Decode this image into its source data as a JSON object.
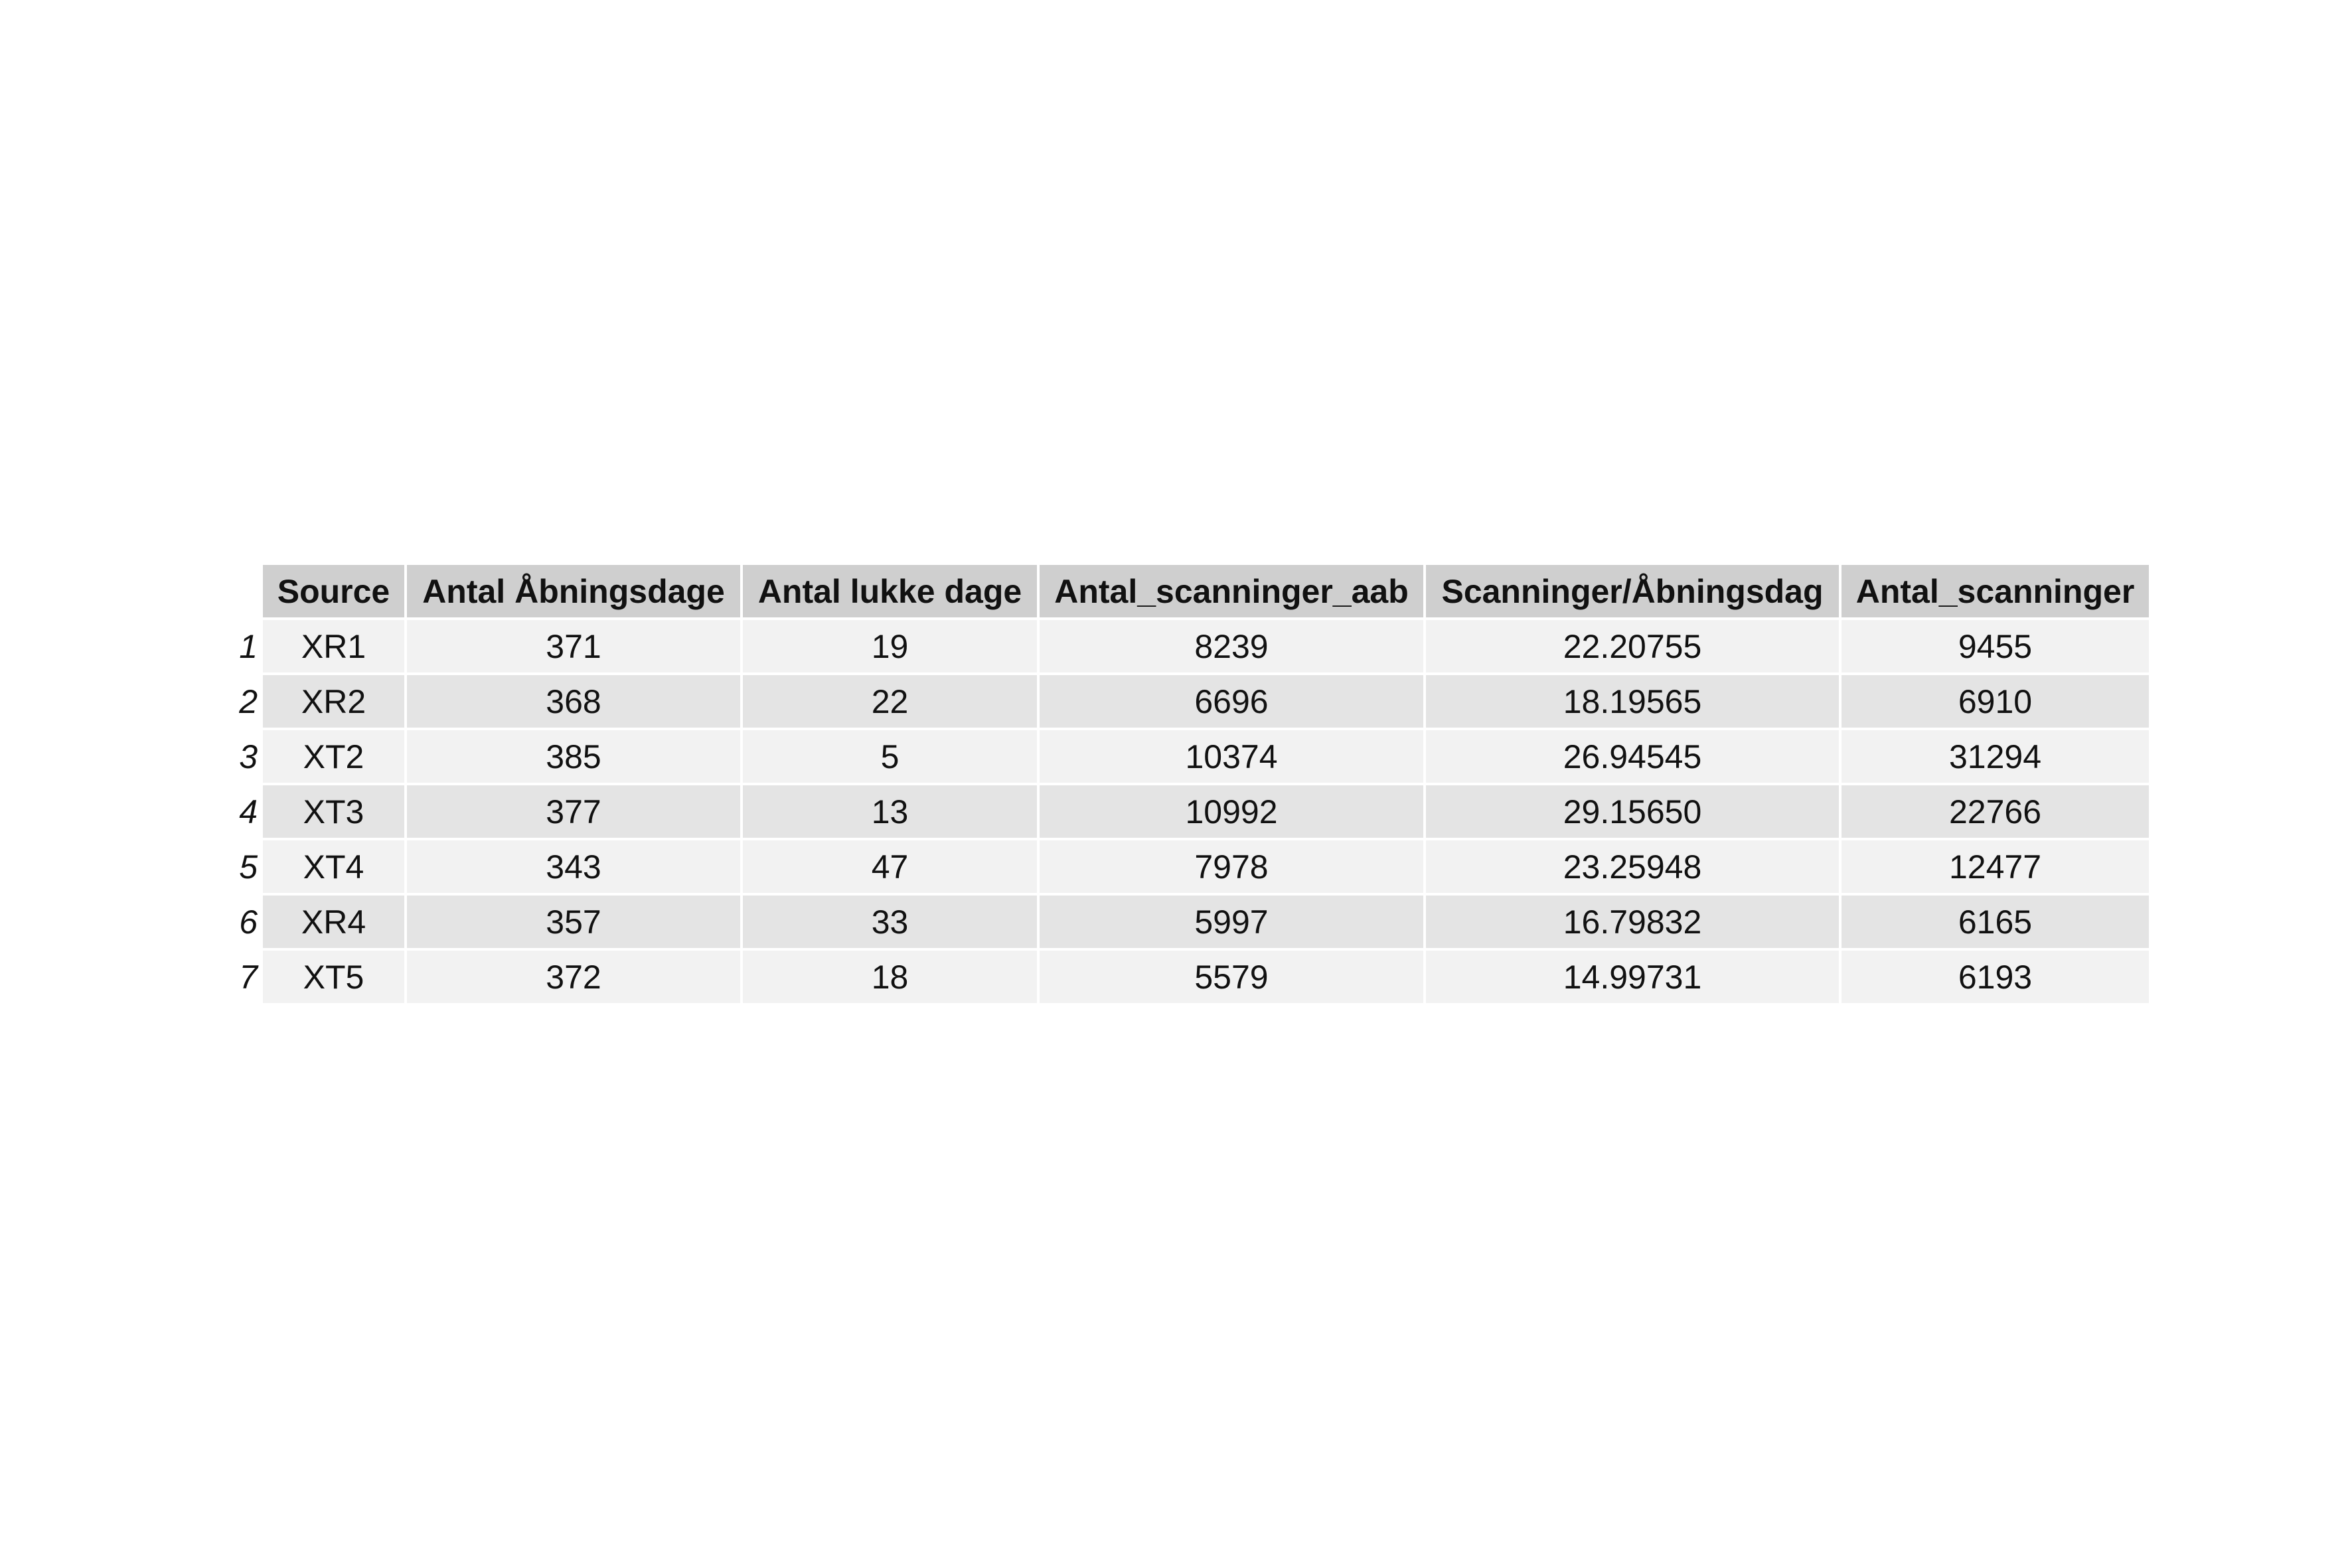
{
  "chart_data": {
    "type": "table",
    "columns": [
      "Source",
      "Antal Åbningsdage",
      "Antal lukke dage",
      "Antal_scanninger_aab",
      "Scanninger/Åbningsdag",
      "Antal_scanninger"
    ],
    "rows": [
      {
        "index": "1",
        "cells": [
          "XR1",
          "371",
          "19",
          "8239",
          "22.20755",
          "9455"
        ]
      },
      {
        "index": "2",
        "cells": [
          "XR2",
          "368",
          "22",
          "6696",
          "18.19565",
          "6910"
        ]
      },
      {
        "index": "3",
        "cells": [
          "XT2",
          "385",
          "5",
          "10374",
          "26.94545",
          "31294"
        ]
      },
      {
        "index": "4",
        "cells": [
          "XT3",
          "377",
          "13",
          "10992",
          "29.15650",
          "22766"
        ]
      },
      {
        "index": "5",
        "cells": [
          "XT4",
          "343",
          "47",
          "7978",
          "23.25948",
          "12477"
        ]
      },
      {
        "index": "6",
        "cells": [
          "XR4",
          "357",
          "33",
          "5997",
          "16.79832",
          "6165"
        ]
      },
      {
        "index": "7",
        "cells": [
          "XT5",
          "372",
          "18",
          "5579",
          "14.99731",
          "6193"
        ]
      }
    ],
    "colors": {
      "header_bg": "#cfcfcf",
      "row_odd_bg": "#f2f2f2",
      "row_even_bg": "#e4e4e4",
      "text": "#111111"
    }
  }
}
